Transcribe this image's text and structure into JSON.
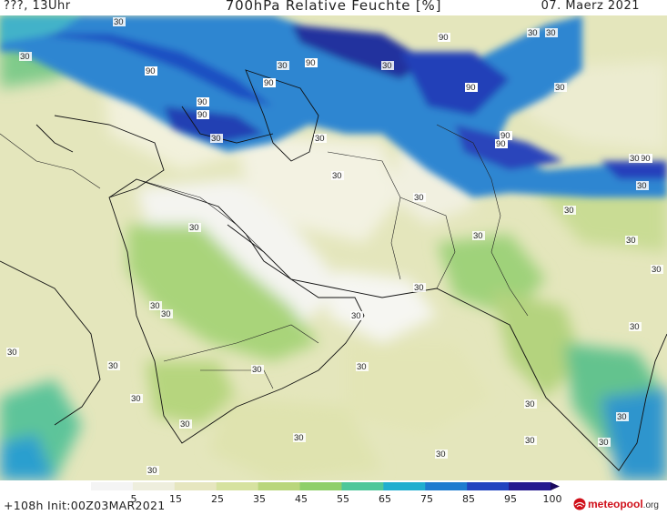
{
  "header": {
    "left": "???, 13Uhr",
    "title": "700hPa Relative Feuchte [%]",
    "date": "07. Maerz 2021"
  },
  "footer": {
    "init": "+108h Init:00Z03MAR2021",
    "logo": "meteopool",
    "logo_ext": ".org"
  },
  "colorbar": {
    "ticks": [
      "5",
      "15",
      "25",
      "35",
      "45",
      "55",
      "65",
      "75",
      "85",
      "95",
      "100"
    ],
    "colors": [
      "#f4f4f4",
      "#eeeedd",
      "#e6e6bf",
      "#d6e2a0",
      "#b9d67c",
      "#8fcf6a",
      "#4ec79a",
      "#20aecf",
      "#1e7ccf",
      "#2144bf",
      "#241a8f",
      "#1a0a5e"
    ]
  },
  "contour_labels": [
    {
      "text": "30"
    },
    {
      "text": "30"
    },
    {
      "text": "30"
    },
    {
      "text": "30"
    },
    {
      "text": "30"
    },
    {
      "text": "30"
    },
    {
      "text": "90"
    },
    {
      "text": "90"
    },
    {
      "text": "90"
    },
    {
      "text": "90"
    },
    {
      "text": "90"
    },
    {
      "text": "90"
    },
    {
      "text": "90"
    },
    {
      "text": "90"
    },
    {
      "text": "90"
    },
    {
      "text": "30"
    },
    {
      "text": "30"
    },
    {
      "text": "30"
    },
    {
      "text": "30"
    },
    {
      "text": "30"
    },
    {
      "text": "30"
    },
    {
      "text": "30"
    },
    {
      "text": "30"
    },
    {
      "text": "30"
    },
    {
      "text": "30"
    },
    {
      "text": "30"
    },
    {
      "text": "30"
    },
    {
      "text": "30"
    },
    {
      "text": "30"
    },
    {
      "text": "30"
    },
    {
      "text": "30"
    },
    {
      "text": "30"
    },
    {
      "text": "30"
    },
    {
      "text": "30"
    },
    {
      "text": "30"
    },
    {
      "text": "30"
    },
    {
      "text": "30"
    },
    {
      "text": "30"
    },
    {
      "text": "30"
    },
    {
      "text": "30"
    },
    {
      "text": "30"
    },
    {
      "text": "30"
    },
    {
      "text": "30"
    },
    {
      "text": "30"
    },
    {
      "text": "90"
    },
    {
      "text": "30"
    }
  ]
}
